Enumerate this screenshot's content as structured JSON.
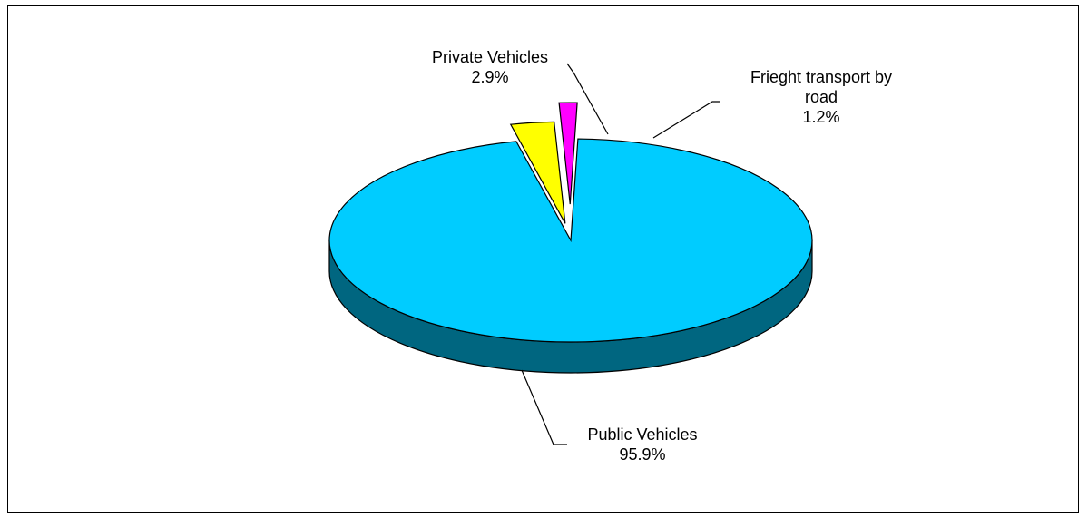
{
  "chart_data": {
    "type": "pie",
    "style": "3d-exploded",
    "slices": [
      {
        "name": "Public Vehicles",
        "value": 95.9,
        "value_label": "95.9%",
        "color": "#00ccff",
        "side_color": "#006680",
        "exploded": false
      },
      {
        "name": "Private Vehicles",
        "value": 2.9,
        "value_label": "2.9%",
        "color": "#ffff00",
        "side_color": "#999900",
        "exploded": true
      },
      {
        "name": "Frieght transport by road",
        "value": 1.2,
        "value_label": "1.2%",
        "color": "#ff00ff",
        "side_color": "#990099",
        "exploded": true
      }
    ],
    "label_lines": {
      "public": "Public Vehicles",
      "private": "Private Vehicles",
      "freight_1": "Frieght transport by",
      "freight_2": "road"
    },
    "legend": "none"
  }
}
